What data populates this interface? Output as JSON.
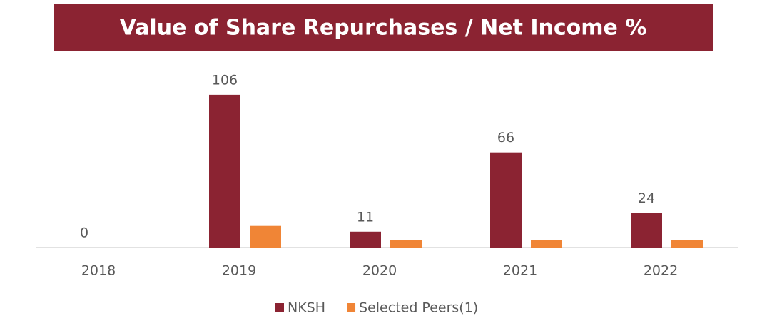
{
  "chart_data": {
    "type": "bar",
    "title": "Value of Share Repurchases / Net Income %",
    "categories": [
      "2018",
      "2019",
      "2020",
      "2021",
      "2022"
    ],
    "series": [
      {
        "name": "NKSH",
        "color": "#8b2332",
        "values": [
          0,
          106,
          11,
          66,
          24
        ]
      },
      {
        "name": "Selected Peers(1)",
        "color": "#f08536",
        "values": [
          0,
          15,
          5,
          5,
          5
        ]
      }
    ],
    "labeled_series": 0
  }
}
